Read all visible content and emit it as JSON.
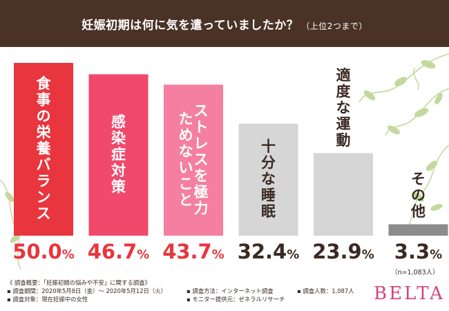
{
  "title": "妊娠初期は何に気を遣っていましたか？",
  "title_note": "（上位2つまで）",
  "sample": "（n=1,083人）",
  "notes": {
    "survey_overview": "《 調査概要：「妊娠初期の悩みや不安」に関する調査》",
    "period": "▪ 調査期間：2020年5月8日（金）～ 2020年5月12日（火）",
    "target": "▪ 調査対象：現在妊娠中の女性",
    "method": "▪ 調査方法：インターネット調査",
    "provider": "▪ モニター提供元：ゼネラルリサーチ",
    "count": "▪ 調査人数：1,087人"
  },
  "logo": "BELTA",
  "colors": {
    "header_bg": "#4a3226",
    "value_dark": "#3a2a22",
    "vine": "#c4d89e"
  },
  "chart_data": {
    "type": "bar",
    "title": "妊娠初期は何に気を遣っていましたか？（上位2つまで）",
    "categories": [
      "食事の栄養バランス",
      "感染症対策",
      "ストレスを極力ためないこと",
      "十分な睡眠",
      "適度な運動",
      "その他"
    ],
    "label_lines": [
      [
        "食事の栄養バランス"
      ],
      [
        "感染症対策"
      ],
      [
        "ストレスを極力",
        "ためないこと"
      ],
      [
        "十分な睡眠"
      ],
      [
        "適度な運動"
      ],
      [
        "その他"
      ]
    ],
    "values": [
      50.0,
      46.7,
      43.7,
      32.4,
      23.9,
      3.3
    ],
    "value_labels": [
      "50.0",
      "46.7",
      "43.7",
      "32.4",
      "23.9",
      "3.3"
    ],
    "unit": "%",
    "bar_colors": [
      "#e8353e",
      "#f0496c",
      "#f47fa0",
      "#d6d6d6",
      "#d6d6d6",
      "#8c8c8c"
    ],
    "label_colors": [
      "#ffffff",
      "#ffffff",
      "#ffffff",
      "#3a2a22",
      "#3a2a22",
      "#3a2a22"
    ],
    "value_colors": [
      "#e8353e",
      "#e8353e",
      "#e8353e",
      "#3a2a22",
      "#3a2a22",
      "#3a2a22"
    ],
    "ylim": [
      0,
      50
    ],
    "xlabel": "",
    "ylabel": "",
    "legend": "none",
    "grid": false
  }
}
